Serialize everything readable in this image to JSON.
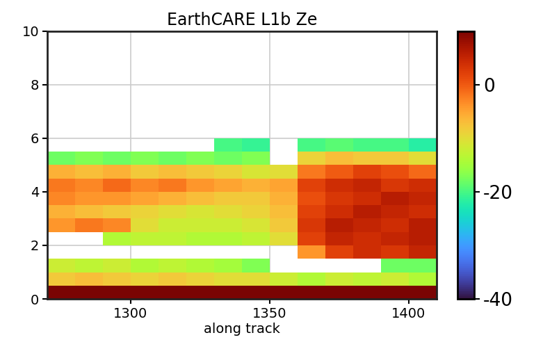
{
  "chart_data": {
    "type": "heatmap",
    "title": "EarthCARE L1b Ze",
    "x_label": "along track",
    "x_edges": [
      1270,
      1280,
      1290,
      1300,
      1310,
      1320,
      1330,
      1340,
      1350,
      1360,
      1370,
      1380,
      1390,
      1400,
      1410
    ],
    "y_edges": [
      0,
      0.5,
      1,
      1.5,
      2,
      2.5,
      3,
      3.5,
      4,
      4.5,
      5,
      5.5,
      6,
      6.5,
      7,
      7.5,
      8,
      8.5,
      9,
      9.5,
      10
    ],
    "cells": [
      [
        10,
        10,
        10,
        10,
        10,
        10,
        10,
        10,
        10,
        10,
        10,
        10,
        10,
        10
      ],
      [
        -8,
        -7,
        -8,
        -9,
        -8,
        -9,
        -10,
        -10,
        -12,
        -14,
        -12,
        -13,
        -12,
        -14
      ],
      [
        -12,
        -13,
        -12,
        -14,
        -13,
        -14,
        -15,
        -17,
        null,
        null,
        null,
        null,
        -18,
        -18
      ],
      [
        null,
        null,
        null,
        null,
        null,
        null,
        null,
        null,
        null,
        -4,
        2,
        4,
        3,
        5
      ],
      [
        null,
        null,
        -14,
        -13,
        -13,
        -14,
        -14,
        -13,
        -10,
        2,
        5,
        4,
        5,
        6
      ],
      [
        -4,
        -2,
        -3,
        -10,
        -12,
        -12,
        -12,
        -11,
        -8,
        3,
        6,
        5,
        4,
        6
      ],
      [
        -6,
        -7,
        -8,
        -9,
        -10,
        -11,
        -10,
        -9,
        -7,
        2,
        4,
        6,
        5,
        4
      ],
      [
        -3,
        -4,
        -4,
        -5,
        -6,
        -7,
        -8,
        -8,
        -6,
        1,
        3,
        4,
        6,
        5
      ],
      [
        -2,
        -3,
        -1,
        -3,
        -2,
        -4,
        -5,
        -6,
        -5,
        2,
        4,
        5,
        3,
        4
      ],
      [
        -6,
        -7,
        -6,
        -8,
        -7,
        -8,
        -9,
        -11,
        -10,
        -2,
        0,
        2,
        1,
        -1
      ],
      [
        -18,
        -17,
        -18,
        -17,
        -18,
        -17,
        -18,
        -17,
        null,
        -9,
        -7,
        -8,
        -8,
        -10
      ],
      [
        null,
        null,
        null,
        null,
        null,
        null,
        -20,
        -21,
        null,
        -20,
        -19,
        -20,
        -20,
        -22
      ],
      [
        null,
        null,
        null,
        null,
        null,
        null,
        null,
        null,
        null,
        null,
        null,
        null,
        null,
        null
      ],
      [
        null,
        null,
        null,
        null,
        null,
        null,
        null,
        null,
        null,
        null,
        null,
        null,
        null,
        null
      ],
      [
        null,
        null,
        null,
        null,
        null,
        null,
        null,
        null,
        null,
        null,
        null,
        null,
        null,
        null
      ],
      [
        null,
        null,
        null,
        null,
        null,
        null,
        null,
        null,
        null,
        null,
        null,
        null,
        null,
        null
      ],
      [
        null,
        null,
        null,
        null,
        null,
        null,
        null,
        null,
        null,
        null,
        null,
        null,
        null,
        null
      ],
      [
        null,
        null,
        null,
        null,
        null,
        null,
        null,
        null,
        null,
        null,
        null,
        null,
        null,
        null
      ],
      [
        null,
        null,
        null,
        null,
        null,
        null,
        null,
        null,
        null,
        null,
        null,
        null,
        null,
        null
      ],
      [
        null,
        null,
        null,
        null,
        null,
        null,
        null,
        null,
        null,
        null,
        null,
        null,
        null,
        null
      ]
    ],
    "xlim": [
      1270,
      1410
    ],
    "xticks": [
      1300,
      1350,
      1400
    ],
    "ylim": [
      0,
      10
    ],
    "yticks": [
      0,
      2,
      4,
      6,
      8,
      10
    ],
    "colorbar_lim": [
      -40,
      10
    ],
    "colorbar_ticks": [
      -40,
      -20,
      0
    ],
    "grid": true
  }
}
